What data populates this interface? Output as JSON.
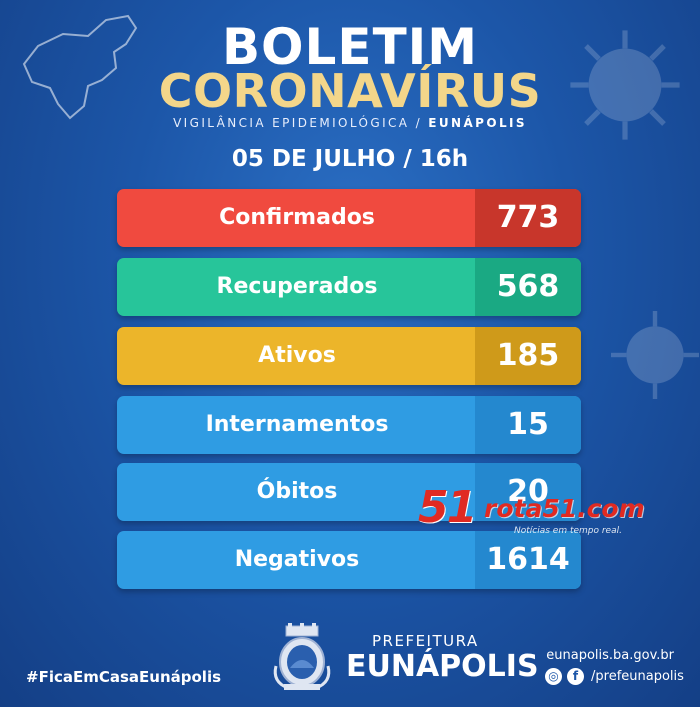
{
  "header": {
    "title_line1": "BOLETIM",
    "title_line2": "CORONAVÍRUS",
    "subtitle_main": "VIGILÂNCIA EPIDEMIOLÓGICA /",
    "subtitle_city": "EUNÁPOLIS",
    "date": "05 DE JULHO / 16h"
  },
  "stats": [
    {
      "label": "Confirmados",
      "value": "773",
      "color": "#f04a3f"
    },
    {
      "label": "Recuperados",
      "value": "568",
      "color": "#27c59a"
    },
    {
      "label": "Ativos",
      "value": "185",
      "color": "#ecb52a"
    },
    {
      "label": "Internamentos",
      "value": "15",
      "color": "#2f9ce3"
    },
    {
      "label": "Óbitos",
      "value": "20",
      "color": "#2f9ce3"
    },
    {
      "label": "Negativos",
      "value": "1614",
      "color": "#2f9ce3"
    }
  ],
  "watermark": {
    "number": "51",
    "site": "rota51.com",
    "tagline": "Notícias em tempo real."
  },
  "footer": {
    "hashtag": "#FicaEmCasaEunápolis",
    "prefeitura_label": "PREFEITURA",
    "city_name": "EUNÁPOLIS",
    "website": "eunapolis.ba.gov.br",
    "social_handle": "/prefeunapolis",
    "social_icons": [
      "instagram-icon",
      "facebook-icon"
    ]
  }
}
